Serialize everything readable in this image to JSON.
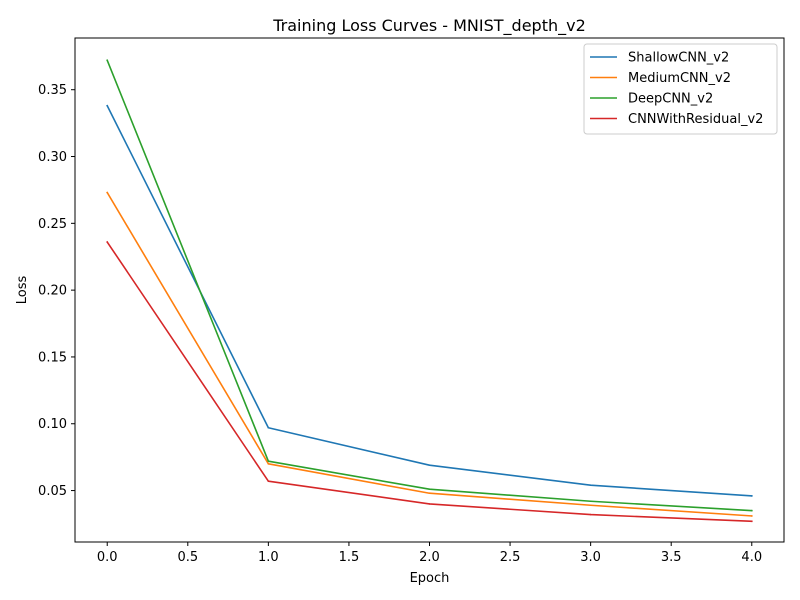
{
  "chart_data": {
    "type": "line",
    "title": "Training Loss Curves - MNIST_depth_v2",
    "xlabel": "Epoch",
    "ylabel": "Loss",
    "xlim": [
      -0.2,
      4.2
    ],
    "ylim": [
      0.0115,
      0.3887
    ],
    "x_ticks": [
      0.0,
      0.5,
      1.0,
      1.5,
      2.0,
      2.5,
      3.0,
      3.5,
      4.0
    ],
    "x_tick_labels": [
      "0.0",
      "0.5",
      "1.0",
      "1.5",
      "2.0",
      "2.5",
      "3.0",
      "3.5",
      "4.0"
    ],
    "y_ticks": [
      0.05,
      0.1,
      0.15,
      0.2,
      0.25,
      0.3,
      0.35
    ],
    "y_tick_labels": [
      "0.05",
      "0.10",
      "0.15",
      "0.20",
      "0.25",
      "0.30",
      "0.35"
    ],
    "grid": false,
    "legend_position": "top-right",
    "x": [
      0,
      1,
      2,
      3,
      4
    ],
    "series": [
      {
        "name": "ShallowCNN_v2",
        "color": "#1f77b4",
        "values": [
          0.338,
          0.097,
          0.069,
          0.054,
          0.046
        ]
      },
      {
        "name": "MediumCNN_v2",
        "color": "#ff7f0e",
        "values": [
          0.273,
          0.07,
          0.048,
          0.039,
          0.031
        ]
      },
      {
        "name": "DeepCNN_v2",
        "color": "#2ca02c",
        "values": [
          0.372,
          0.072,
          0.051,
          0.042,
          0.035
        ]
      },
      {
        "name": "CNNWithResidual_v2",
        "color": "#d62728",
        "values": [
          0.236,
          0.057,
          0.04,
          0.032,
          0.027
        ]
      }
    ]
  }
}
